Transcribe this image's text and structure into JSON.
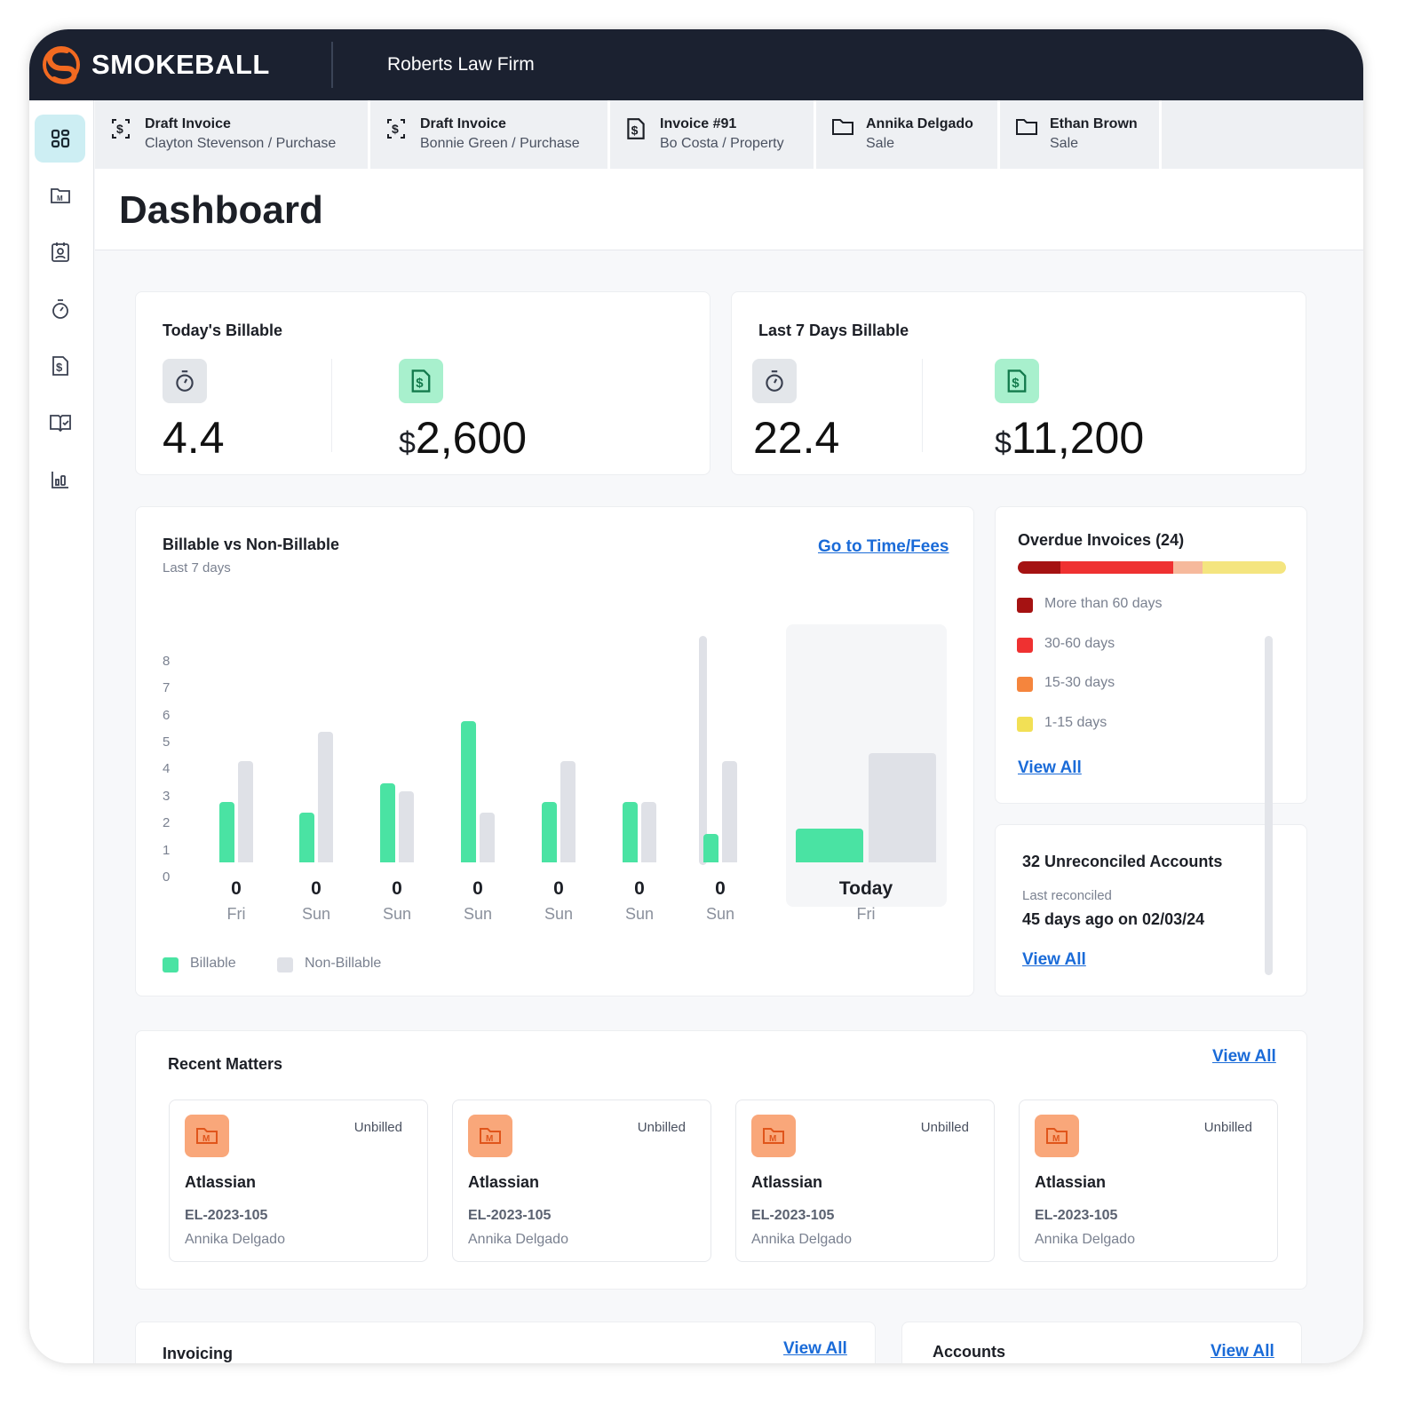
{
  "header": {
    "brand": "SMOKEBALL",
    "firm": "Roberts Law Firm"
  },
  "sidebar": {
    "items": [
      {
        "icon": "dashboard-icon"
      },
      {
        "icon": "matters-folder-icon"
      },
      {
        "icon": "contacts-icon"
      },
      {
        "icon": "timer-icon"
      },
      {
        "icon": "invoice-icon"
      },
      {
        "icon": "book-check-icon"
      },
      {
        "icon": "reports-chart-icon"
      }
    ]
  },
  "tabs": [
    {
      "icon": "draft-invoice-icon",
      "title": "Draft Invoice",
      "subtitle": "Clayton Stevenson / Purchase"
    },
    {
      "icon": "draft-invoice-icon",
      "title": "Draft Invoice",
      "subtitle": "Bonnie Green / Purchase"
    },
    {
      "icon": "invoice-icon",
      "title": "Invoice #91",
      "subtitle": "Bo Costa / Property"
    },
    {
      "icon": "folder-icon",
      "title": "Annika Delgado",
      "subtitle": "Sale"
    },
    {
      "icon": "folder-icon",
      "title": "Ethan Brown",
      "subtitle": "Sale"
    }
  ],
  "page_title": "Dashboard",
  "today": {
    "title": "Today's Billable",
    "hours": "4.4",
    "currency": "$",
    "amount": "2,600"
  },
  "last7": {
    "title": "Last 7 Days Billable",
    "hours": "22.4",
    "currency": "$",
    "amount": "11,200"
  },
  "chart_panel": {
    "title": "Billable vs Non-Billable",
    "subtitle": "Last 7 days",
    "link": "Go to Time/Fees"
  },
  "chart_data": {
    "type": "bar",
    "title": "Billable vs Non-Billable",
    "ylim": [
      0,
      8
    ],
    "yticks": [
      "8",
      "7",
      "6",
      "5",
      "4",
      "3",
      "2",
      "1",
      "0"
    ],
    "categories": [
      "Fri",
      "Sun",
      "Sun",
      "Sun",
      "Sun",
      "Sun",
      "Sun",
      "Fri"
    ],
    "value_labels": [
      "0",
      "0",
      "0",
      "0",
      "0",
      "0",
      "0",
      "Today"
    ],
    "series": [
      {
        "name": "Billable",
        "color": "#4ae3a3",
        "values": [
          2.8,
          2.4,
          3.5,
          5.8,
          2.8,
          2.8,
          1.6,
          1.8
        ]
      },
      {
        "name": "Non-Billable",
        "color": "#dfe1e7",
        "values": [
          4.3,
          5.4,
          3.2,
          2.4,
          4.3,
          2.8,
          4.3,
          4.6
        ]
      }
    ],
    "legend": "bottom-left"
  },
  "overdue": {
    "title": "Overdue Invoices (24)",
    "segments": [
      {
        "color": "#a51212",
        "fraction": 0.16
      },
      {
        "color": "#ef3131",
        "fraction": 0.42
      },
      {
        "color": "#f6b99c",
        "fraction": 0.11
      },
      {
        "color": "#f4e57f",
        "fraction": 0.31
      }
    ],
    "legend": [
      {
        "label": "More than 60 days",
        "color": "#a51212"
      },
      {
        "label": "30-60 days",
        "color": "#ef3131"
      },
      {
        "label": "15-30 days",
        "color": "#f5853d"
      },
      {
        "label": "1-15 days",
        "color": "#f2e055"
      }
    ],
    "link": "View All"
  },
  "unreconciled": {
    "title": "32 Unreconciled Accounts",
    "label": "Last reconciled",
    "value": "45 days ago on 02/03/24",
    "link": "View All"
  },
  "recent_matters": {
    "title": "Recent Matters",
    "link": "View All",
    "items": [
      {
        "status": "Unbilled",
        "name": "Atlassian",
        "code": "EL-2023-105",
        "client": "Annika Delgado"
      },
      {
        "status": "Unbilled",
        "name": "Atlassian",
        "code": "EL-2023-105",
        "client": "Annika Delgado"
      },
      {
        "status": "Unbilled",
        "name": "Atlassian",
        "code": "EL-2023-105",
        "client": "Annika Delgado"
      },
      {
        "status": "Unbilled",
        "name": "Atlassian",
        "code": "EL-2023-105",
        "client": "Annika Delgado"
      }
    ]
  },
  "invoicing": {
    "title": "Invoicing",
    "link": "View All"
  },
  "accounts": {
    "title": "Accounts",
    "link": "View All"
  }
}
